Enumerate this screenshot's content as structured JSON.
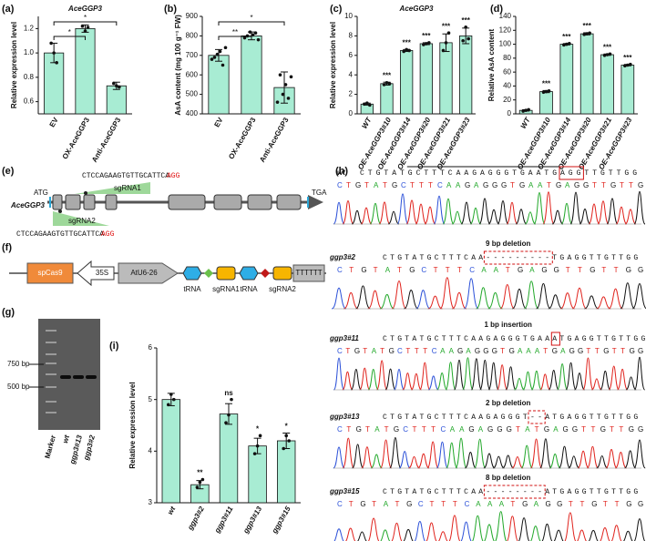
{
  "panel_labels": [
    "(a)",
    "(b)",
    "(c)",
    "(d)",
    "(e)",
    "(f)",
    "(g)",
    "(h)",
    "(i)"
  ],
  "chart_data": [
    {
      "type": "bar",
      "title": "AceGGP3",
      "ylabel": "Relative expression level",
      "categories": [
        "EV",
        "OX-AceGGP3",
        "Anti-AceGGP3"
      ],
      "values": [
        1.0,
        1.2,
        0.73
      ],
      "errors": [
        0.08,
        0.03,
        0.03
      ],
      "points": [
        [
          1.08,
          1.0,
          0.92
        ],
        [
          1.22,
          1.18,
          1.21
        ],
        [
          0.75,
          0.73,
          0.72
        ]
      ],
      "significance": [
        null,
        "*",
        "*"
      ],
      "bracket": true,
      "color": "#a8ecd3",
      "ylim": [
        0.5,
        1.3
      ],
      "yticks": [
        0.6,
        0.8,
        {
          "value": 1,
          "label": "1.0"
        },
        1.2
      ]
    },
    {
      "type": "bar",
      "ylabel": "AsA content (mg 100 g⁻¹ FW)",
      "categories": [
        "EV",
        "OX-AceGGP3",
        "Anti-AceGGP3"
      ],
      "values": [
        700,
        800,
        535
      ],
      "errors": [
        30,
        20,
        80
      ],
      "points": [
        [
          680,
          690,
          705,
          720,
          650,
          740
        ],
        [
          790,
          800,
          820,
          805,
          815,
          780
        ],
        [
          460,
          600,
          500,
          550,
          480,
          590
        ]
      ],
      "significance": [
        null,
        "**",
        "*"
      ],
      "bracket": true,
      "color": "#a8ecd3",
      "ylim": [
        400,
        900
      ],
      "yticks": [
        400,
        500,
        600,
        700,
        800,
        900
      ]
    },
    {
      "type": "bar",
      "title": "AceGGP3",
      "ylabel": "Relative expression level",
      "categories": [
        "WT",
        "OE-AceGGP3#10",
        "OE-AceGGP3#14",
        "OE-AceGGP3#20",
        "OE-AceGGP3#21",
        "OE-AceGGP3#23"
      ],
      "values": [
        1.0,
        3.1,
        6.5,
        7.2,
        7.3,
        8.0
      ],
      "errors": [
        0.1,
        0.15,
        0.1,
        0.1,
        0.9,
        0.8
      ],
      "points": [
        [
          1.0,
          1.1,
          0.9
        ],
        [
          3.0,
          3.2,
          3.1
        ],
        [
          6.4,
          6.6,
          6.5
        ],
        [
          7.1,
          7.2,
          7.3
        ],
        [
          6.5,
          7.3,
          8.3
        ],
        [
          7.5,
          8.9,
          7.7
        ]
      ],
      "significance": [
        null,
        "***",
        "***",
        "***",
        "***",
        "***"
      ],
      "bracket": false,
      "color": "#a8ecd3",
      "ylim": [
        0,
        10
      ],
      "yticks": [
        0,
        2,
        4,
        6,
        8,
        10
      ]
    },
    {
      "type": "bar",
      "ylabel": "Relative AsA content",
      "categories": [
        "WT",
        "OE-AceGGP3#10",
        "OE-AceGGP3#14",
        "OE-AceGGP3#20",
        "OE-AceGGP3#21",
        "OE-AceGGP3#23"
      ],
      "values": [
        5,
        32,
        100,
        115,
        85,
        70
      ],
      "errors": [
        1,
        1.5,
        1,
        1.5,
        1,
        1
      ],
      "points": [
        [
          4,
          5,
          6
        ],
        [
          31,
          32,
          33
        ],
        [
          99,
          100,
          101
        ],
        [
          114,
          115,
          116
        ],
        [
          84,
          85,
          86
        ],
        [
          69,
          70,
          71
        ]
      ],
      "significance": [
        null,
        "***",
        "***",
        "***",
        "***",
        "***"
      ],
      "bracket": false,
      "color": "#a8ecd3",
      "ylim": [
        0,
        140
      ],
      "yticks": [
        0,
        20,
        40,
        60,
        80,
        100,
        120,
        140
      ]
    },
    {
      "type": "bar",
      "ylabel": "Relative expression level",
      "categories": [
        "wt",
        "ggp3#2",
        "ggp3#11",
        "ggp3#13",
        "ggp3#15"
      ],
      "values": [
        5.0,
        3.35,
        4.72,
        4.1,
        4.2
      ],
      "errors": [
        0.12,
        0.08,
        0.2,
        0.15,
        0.15
      ],
      "points": [
        [
          4.9,
          5.1,
          5.0
        ],
        [
          3.3,
          3.4,
          3.45
        ],
        [
          4.55,
          4.7,
          5.0
        ],
        [
          3.95,
          4.1,
          4.3
        ],
        [
          4.05,
          4.3,
          4.2
        ]
      ],
      "significance": [
        null,
        "**",
        "ns",
        "*",
        "*"
      ],
      "bracket": false,
      "color": "#a8ecd3",
      "ylim": [
        3,
        6
      ],
      "yticks": [
        3,
        4,
        5,
        6
      ]
    }
  ],
  "gene_structure": {
    "gene": "AceGGP3",
    "start_codon": "ATG",
    "stop_codon": "TGA",
    "sgrna1": {
      "name": "sgRNA1",
      "sequence": "CTCCAGAAGTGTTGCATTCA",
      "pam": "AGG"
    },
    "sgrna2": {
      "name": "sgRNA2",
      "sequence": "CTCCAGAAGTGTTGCATTCA",
      "pam": "AGG"
    }
  },
  "construct": {
    "elements": [
      "spCas9",
      "35S",
      "AtU6-26",
      "tRNA",
      "sgRNA1",
      "tRNA",
      "sgRNA2",
      "TTTTTT"
    ]
  },
  "gel": {
    "markers": [
      "750 bp",
      "500 bp"
    ],
    "lanes": [
      "Marker",
      "wt",
      "ggp3#13",
      "ggp3#2"
    ]
  },
  "sequencing": {
    "rows": [
      {
        "name": "wt",
        "sequence": "CTGTATGCTTTCAAGAGGGTGAATGAGGTTGTTGG",
        "calls": "CTGTATGCTTTCAAGAGGGTGAATGAGGTTGTTG"
      },
      {
        "name": "ggp3#2",
        "mutation": "9 bp deletion",
        "sequence": "CTGTATGCTTTCAA---------TGAGGTTGTTGG",
        "calls": "CTGTATGCTTTCAATGAGGTTGTTGG"
      },
      {
        "name": "ggp3#11",
        "mutation": "1 bp insertion",
        "sequence": "CTGTATGCTTTCAAGAGGGTGAAATGAGGTTGTTGG",
        "calls": "CTGTATGCTTTCAAGAGGGTGAAATGAGGTTGTTGG"
      },
      {
        "name": "ggp3#13",
        "mutation": "2 bp deletion",
        "sequence": "CTGTATGCTTTCAAGAGGGT--ATGAGGTTGTTGG",
        "calls": "CTGTATGCTTTCAAGAGGGTATGAGGTTGTTGG"
      },
      {
        "name": "ggp3#15",
        "mutation": "8 bp deletion",
        "sequence": "CTGTATGCTTTCAA--------ATGAGGTTGTTGG",
        "calls": "CTGTATGCTTTCAAATGAGGTTGTTGG"
      }
    ]
  }
}
